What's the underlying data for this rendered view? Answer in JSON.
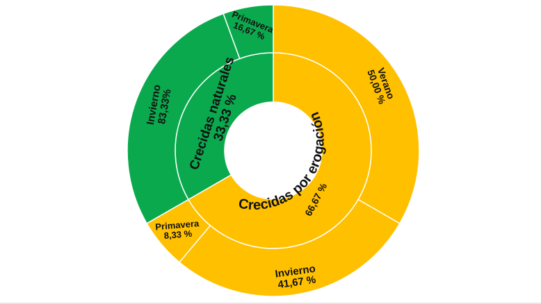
{
  "chart_data": {
    "type": "sunburst",
    "title": "",
    "colors": {
      "Crecidas naturales": "#0BA94E",
      "Crecidas por erogación": "#FFC000",
      "separator": "#FFFFFF"
    },
    "inner_ring": [
      {
        "name": "Crecidas naturales",
        "value": 33.33,
        "label": "33,33 %"
      },
      {
        "name": "Crecidas por erogación",
        "value": 66.67,
        "label": "66,67 %"
      }
    ],
    "outer_ring": [
      {
        "parent": "Crecidas por erogación",
        "name": "Verano",
        "value": 50.0,
        "label": "50,00 %"
      },
      {
        "parent": "Crecidas por erogación",
        "name": "Invierno",
        "value": 41.67,
        "label": "41,67 %"
      },
      {
        "parent": "Crecidas por erogación",
        "name": "Primavera",
        "value": 8.33,
        "label": "8,33 %"
      },
      {
        "parent": "Crecidas naturales",
        "name": "Invierno",
        "value": 83.33,
        "label": "83,33%"
      },
      {
        "parent": "Crecidas naturales",
        "name": "Primavera",
        "value": 16.67,
        "label": "16,67 %"
      }
    ]
  }
}
